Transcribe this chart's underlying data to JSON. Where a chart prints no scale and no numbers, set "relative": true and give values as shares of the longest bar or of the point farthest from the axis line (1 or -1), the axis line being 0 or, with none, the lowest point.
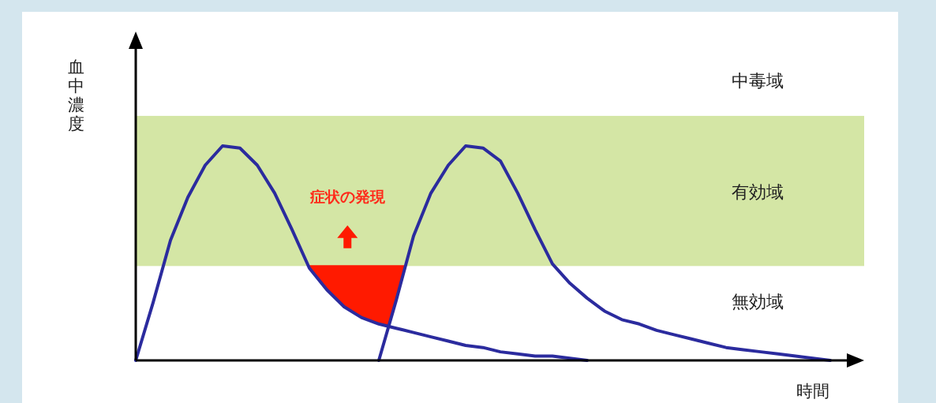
{
  "chart_data": {
    "type": "line",
    "relative": true,
    "ylabel": "血中濃度",
    "xlabel": "時間",
    "categories": [
      null,
      null,
      null,
      null,
      null,
      null,
      null,
      null,
      null,
      null,
      null,
      null,
      null,
      null,
      null,
      null,
      null,
      null,
      null,
      null,
      null,
      null,
      null,
      null,
      null,
      null,
      null,
      null,
      null,
      null,
      null,
      null,
      null,
      null,
      null,
      null,
      null,
      null,
      null,
      null,
      null,
      null
    ],
    "series": [
      {
        "color": "#2b2b9e",
        "values": [
          0,
          0.27,
          0.56,
          0.76,
          0.91,
          1,
          0.99,
          0.91,
          0.78,
          0.61,
          0.43,
          0.33,
          0.25,
          0.2,
          0.17,
          0.15,
          0.13,
          0.11,
          0.09,
          0.07,
          0.06,
          0.04,
          0.03,
          0.02,
          0.02,
          0.01,
          0,
          null,
          null,
          null,
          null,
          null,
          null,
          null,
          null,
          null,
          null,
          null,
          null,
          null,
          null,
          null
        ]
      },
      {
        "color": "#2b2b9e",
        "values": [
          null,
          null,
          null,
          null,
          null,
          null,
          null,
          null,
          null,
          null,
          null,
          null,
          null,
          null,
          0,
          0.28,
          0.58,
          0.78,
          0.91,
          1,
          0.99,
          0.93,
          0.78,
          0.61,
          0.45,
          0.36,
          0.29,
          0.23,
          0.19,
          0.17,
          0.14,
          0.12,
          0.1,
          0.08,
          0.06,
          0.05,
          0.04,
          0.03,
          0.02,
          0.01,
          0,
          null
        ]
      }
    ],
    "bands": [
      {
        "axis": "y",
        "from": 0.44,
        "to": 1.14,
        "label": "有効域",
        "color": "#d4e6a5"
      }
    ],
    "annotations": [
      "症状の発現",
      "中毒域",
      "無効域"
    ]
  }
}
